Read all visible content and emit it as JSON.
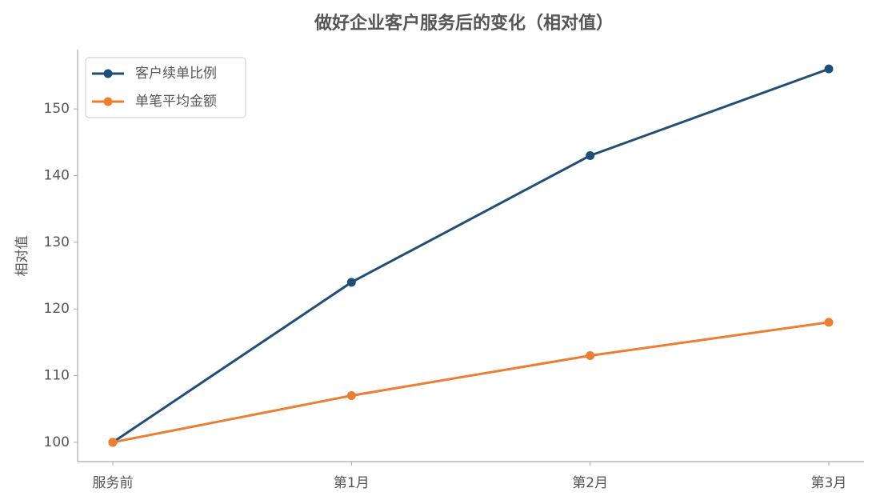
{
  "chart_data": {
    "type": "line",
    "title": "做好企业客户服务后的变化（相对值）",
    "y_label": "相对值",
    "categories": [
      "服务前",
      "第1月",
      "第2月",
      "第3月"
    ],
    "series": [
      {
        "name": "客户续单比例",
        "color": "#1f4e79",
        "values": [
          100,
          124,
          143,
          156
        ]
      },
      {
        "name": "单笔平均金额",
        "color": "#ed7d31",
        "values": [
          100,
          107,
          113,
          118
        ]
      }
    ],
    "ylim": [
      97.1,
      158.9
    ],
    "yticks": [
      100,
      110,
      120,
      130,
      140,
      150
    ],
    "legend": "upper left"
  }
}
